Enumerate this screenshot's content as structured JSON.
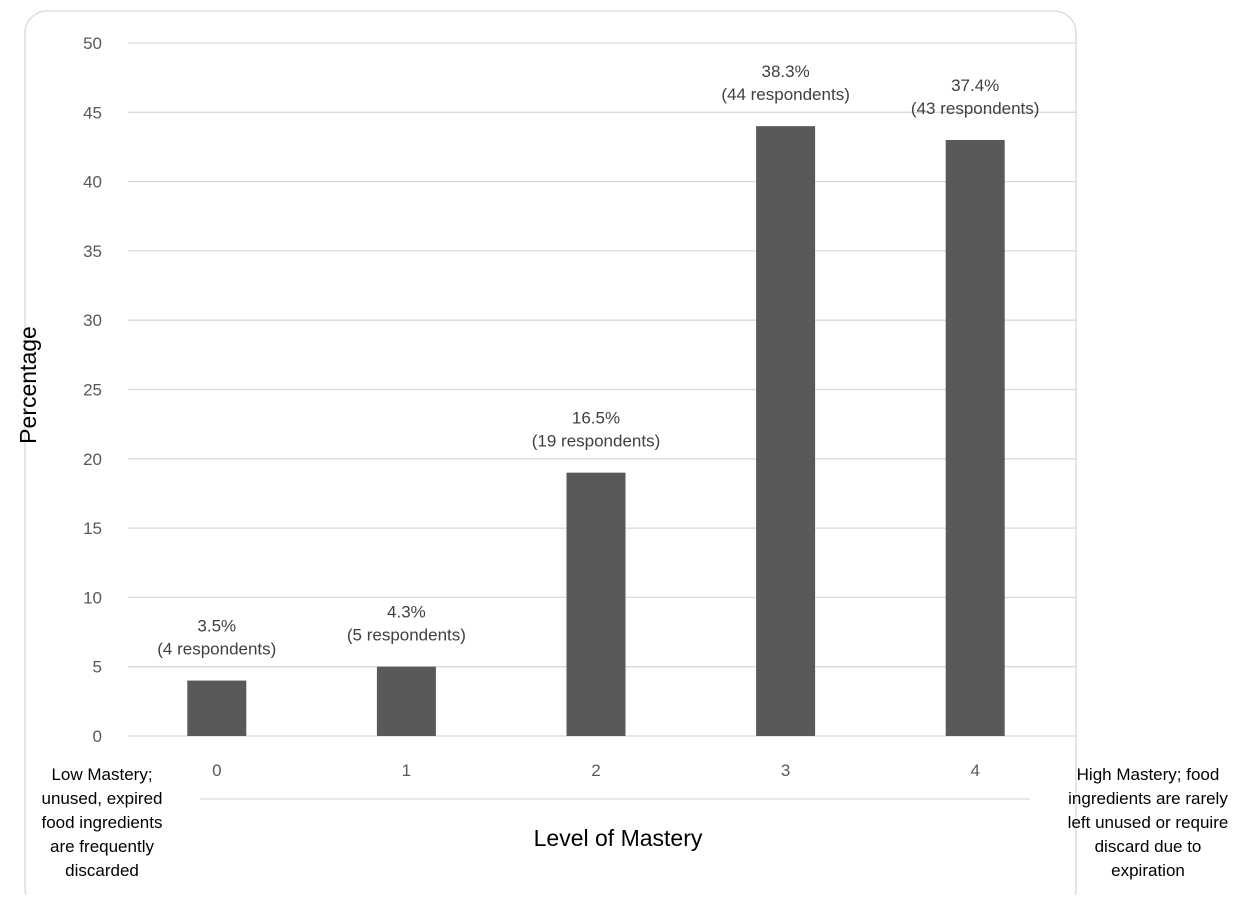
{
  "chart_data": {
    "type": "bar",
    "categories": [
      "0",
      "1",
      "2",
      "3",
      "4"
    ],
    "values": [
      4,
      5,
      19,
      44,
      43
    ],
    "data_labels": [
      [
        "3.5%",
        "(4 respondents)"
      ],
      [
        "4.3%",
        "(5 respondents)"
      ],
      [
        "16.5%",
        "(19 respondents)"
      ],
      [
        "38.3%",
        "(44 respondents)"
      ],
      [
        "37.4%",
        "(43 respondents)"
      ]
    ],
    "title": "",
    "xlabel": "Level of Mastery",
    "ylabel": "Percentage",
    "ylim": [
      0,
      50
    ],
    "yticks": [
      0,
      5,
      10,
      15,
      20,
      25,
      30,
      35,
      40,
      45,
      50
    ],
    "grid": true,
    "legend": "none",
    "bar_color": "#595959",
    "annotations": {
      "low": [
        "Low Mastery;",
        "unused, expired",
        "food ingredients",
        "are frequently",
        "discarded"
      ],
      "high": [
        "High Mastery; food",
        "ingredients are rarely",
        "left unused or require",
        "discard due to",
        "expiration"
      ]
    }
  }
}
